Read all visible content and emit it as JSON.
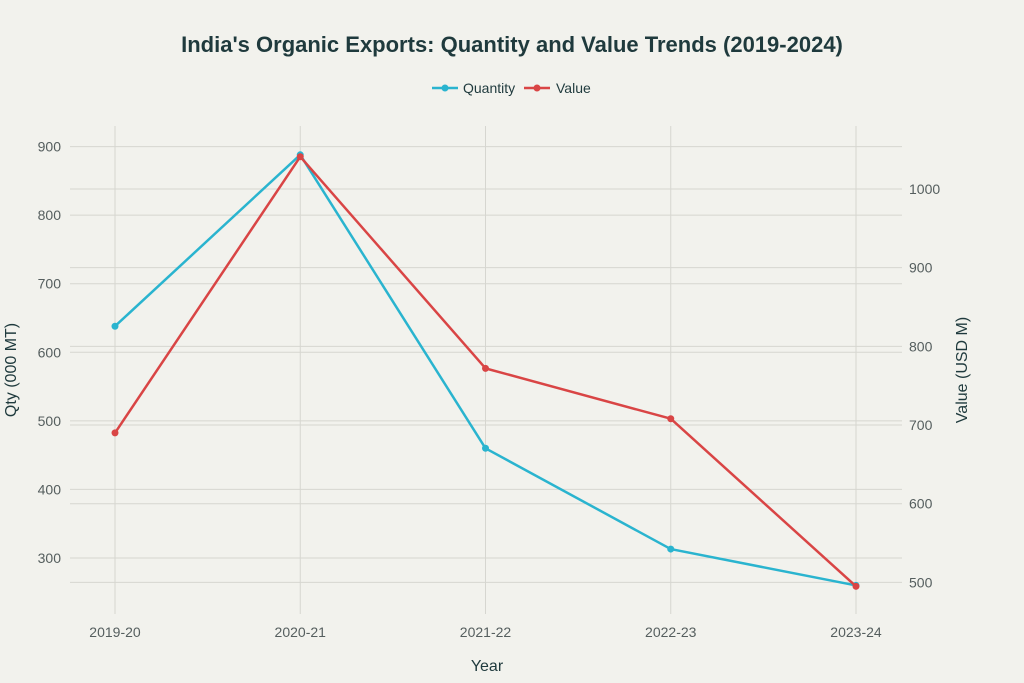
{
  "chart_data": {
    "type": "line",
    "title": "India's Organic Exports: Quantity and Value Trends (2019-2024)",
    "xlabel": "Year",
    "ylabel_left": "Qty (000 MT)",
    "ylabel_right": "Value (USD M)",
    "categories": [
      "2019-20",
      "2020-21",
      "2021-22",
      "2022-23",
      "2023-24"
    ],
    "ylim_left": [
      230,
      930
    ],
    "ylim_right": [
      470,
      1080
    ],
    "yticks_left": [
      300,
      400,
      500,
      600,
      700,
      800,
      900
    ],
    "yticks_right": [
      500,
      600,
      700,
      800,
      900,
      1000
    ],
    "legend_position": "top-center",
    "series": [
      {
        "name": "Quantity",
        "axis": "left",
        "color": "#2ab4cf",
        "values": [
          638,
          888,
          460,
          313,
          260
        ]
      },
      {
        "name": "Value",
        "axis": "right",
        "color": "#d94545",
        "values": [
          690,
          1041,
          772,
          708,
          495
        ]
      }
    ]
  }
}
